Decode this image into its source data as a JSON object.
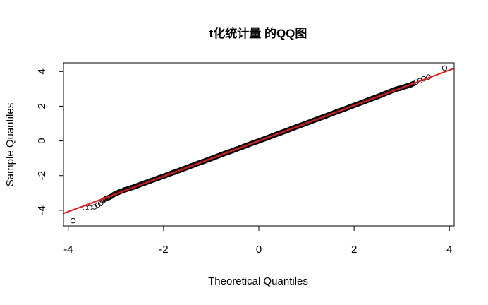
{
  "chart_data": {
    "type": "scatter",
    "title": "t化统计量 的QQ图",
    "xlabel": "Theoretical Quantiles",
    "ylabel": "Sample Quantiles",
    "xlim": [
      -4.1,
      4.1
    ],
    "ylim": [
      -4.9,
      4.5
    ],
    "xticks": [
      -4,
      -2,
      0,
      2,
      4
    ],
    "yticks": [
      -4,
      -2,
      0,
      2,
      4
    ],
    "xtick_labels": [
      "-4",
      "-2",
      "0",
      "2",
      "4"
    ],
    "ytick_labels": [
      "-4",
      "-2",
      "0",
      "2",
      "4"
    ],
    "grid": false,
    "reference_line": {
      "intercept": 0.0,
      "slope": 1.02,
      "color": "#e41a1c"
    },
    "point_color": "#000000",
    "points": {
      "x": [
        -3.9,
        -3.65,
        -3.55,
        -3.45,
        -3.38,
        -3.32,
        -3.28,
        -3.22,
        -3.18,
        -3.14,
        -3.1,
        -3.06,
        -3.02,
        -2.98,
        -2.94,
        -2.9,
        -2.86,
        -2.82,
        -2.76,
        -2.7,
        -2.64,
        -2.58,
        -2.5,
        -2.4,
        -2.3,
        -2.2,
        -2.1,
        -2.0,
        -1.8,
        -1.6,
        -1.4,
        -1.2,
        -1.0,
        -0.8,
        -0.6,
        -0.4,
        -0.2,
        0.0,
        0.2,
        0.4,
        0.6,
        0.8,
        1.0,
        1.2,
        1.4,
        1.6,
        1.8,
        2.0,
        2.1,
        2.2,
        2.3,
        2.4,
        2.5,
        2.58,
        2.64,
        2.7,
        2.76,
        2.82,
        2.88,
        2.94,
        3.0,
        3.06,
        3.12,
        3.18,
        3.24,
        3.3,
        3.38,
        3.46,
        3.56,
        3.9
      ],
      "y": [
        -4.6,
        -3.85,
        -3.85,
        -3.8,
        -3.7,
        -3.6,
        -3.45,
        -3.35,
        -3.3,
        -3.25,
        -3.2,
        -3.12,
        -3.05,
        -3.0,
        -2.96,
        -2.9,
        -2.88,
        -2.82,
        -2.78,
        -2.72,
        -2.67,
        -2.61,
        -2.53,
        -2.43,
        -2.33,
        -2.23,
        -2.13,
        -2.03,
        -1.83,
        -1.63,
        -1.42,
        -1.22,
        -1.02,
        -0.81,
        -0.61,
        -0.41,
        -0.2,
        0.0,
        0.2,
        0.41,
        0.61,
        0.82,
        1.02,
        1.23,
        1.43,
        1.64,
        1.84,
        2.05,
        2.15,
        2.25,
        2.36,
        2.46,
        2.56,
        2.65,
        2.72,
        2.78,
        2.85,
        2.92,
        2.98,
        3.02,
        3.06,
        3.12,
        3.17,
        3.22,
        3.3,
        3.38,
        3.47,
        3.58,
        3.68,
        4.2
      ]
    }
  }
}
